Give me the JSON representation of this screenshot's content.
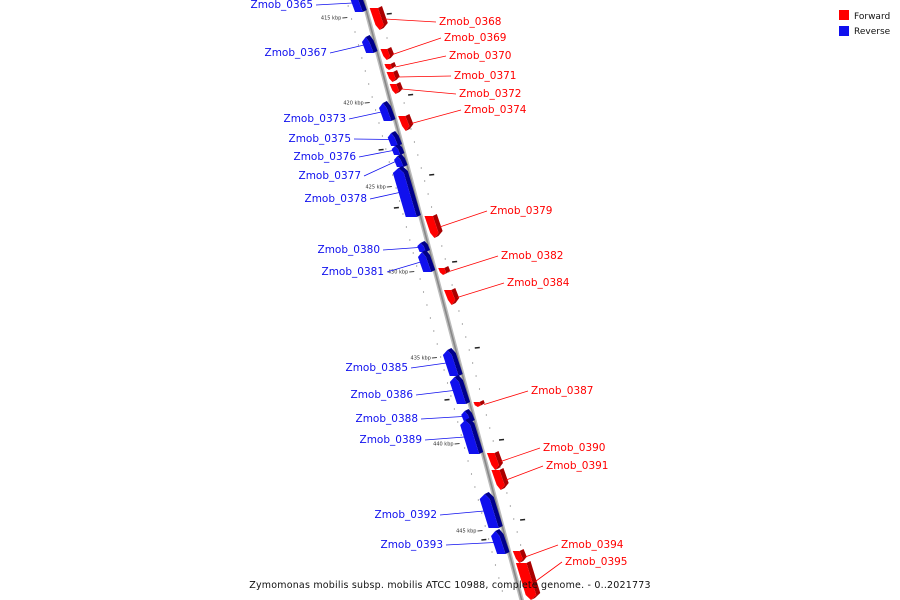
{
  "caption": "Zymomonas mobilis subsp. mobilis ATCC 10988, complete genome. - 0..2021773",
  "legend": [
    {
      "label": "Forward",
      "color": "#ff0000"
    },
    {
      "label": "Reverse",
      "color": "#1010ee"
    }
  ],
  "colors": {
    "forward": "#ff0000",
    "reverse": "#1010ee",
    "forward_dark": "#aa0000",
    "reverse_dark": "#00008a",
    "backbone": "#888888"
  },
  "ticks": [
    "415 kbp",
    "420 kbp",
    "425 kbp",
    "430 kbp",
    "435 kbp",
    "440 kbp",
    "445 kbp"
  ],
  "genes": [
    {
      "name": "Zmob_0365",
      "strand": "reverse"
    },
    {
      "name": "Zmob_0367",
      "strand": "reverse"
    },
    {
      "name": "Zmob_0368",
      "strand": "forward"
    },
    {
      "name": "Zmob_0369",
      "strand": "forward"
    },
    {
      "name": "Zmob_0370",
      "strand": "forward"
    },
    {
      "name": "Zmob_0371",
      "strand": "forward"
    },
    {
      "name": "Zmob_0372",
      "strand": "forward"
    },
    {
      "name": "Zmob_0373",
      "strand": "reverse"
    },
    {
      "name": "Zmob_0374",
      "strand": "forward"
    },
    {
      "name": "Zmob_0375",
      "strand": "reverse"
    },
    {
      "name": "Zmob_0376",
      "strand": "reverse"
    },
    {
      "name": "Zmob_0377",
      "strand": "reverse"
    },
    {
      "name": "Zmob_0378",
      "strand": "reverse"
    },
    {
      "name": "Zmob_0379",
      "strand": "forward"
    },
    {
      "name": "Zmob_0380",
      "strand": "reverse"
    },
    {
      "name": "Zmob_0381",
      "strand": "reverse"
    },
    {
      "name": "Zmob_0382",
      "strand": "forward"
    },
    {
      "name": "Zmob_0384",
      "strand": "forward"
    },
    {
      "name": "Zmob_0385",
      "strand": "reverse"
    },
    {
      "name": "Zmob_0386",
      "strand": "reverse"
    },
    {
      "name": "Zmob_0387",
      "strand": "forward"
    },
    {
      "name": "Zmob_0388",
      "strand": "reverse"
    },
    {
      "name": "Zmob_0389",
      "strand": "reverse"
    },
    {
      "name": "Zmob_0390",
      "strand": "forward"
    },
    {
      "name": "Zmob_0391",
      "strand": "forward"
    },
    {
      "name": "Zmob_0392",
      "strand": "reverse"
    },
    {
      "name": "Zmob_0393",
      "strand": "reverse"
    },
    {
      "name": "Zmob_0394",
      "strand": "forward"
    },
    {
      "name": "Zmob_0395",
      "strand": "forward"
    }
  ]
}
